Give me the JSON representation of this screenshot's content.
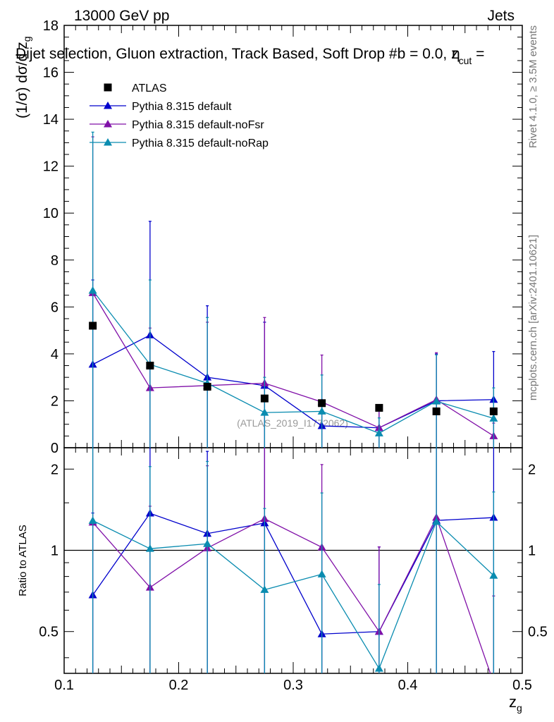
{
  "header": {
    "energy_label": "13000 GeV pp",
    "process_label": "Jets",
    "plot_title": "Dijet selection, Gluon extraction, Track Based, Soft Drop #b = 0.0, z",
    "title_suffix_sub": "cut",
    "title_suffix_tail": " =",
    "title_overlap_glyph": "η"
  },
  "side": {
    "rivet_label": "Rivet 4.1.0, ≥ 3.5M events",
    "mcplots_label": "mcplots.cern.ch [arXiv:2401.10621]"
  },
  "watermark": "(ATLAS_2019_I1772062)",
  "chart_data": {
    "type": "scatter",
    "x": [
      0.125,
      0.175,
      0.225,
      0.275,
      0.325,
      0.375,
      0.425,
      0.475
    ],
    "bin_edges": [
      0.1,
      0.15,
      0.2,
      0.25,
      0.3,
      0.35,
      0.4,
      0.45,
      0.5
    ],
    "top_panel": {
      "ylabel": "(1/σ) dσ/d z",
      "ylabel_sub": "g",
      "ylim": [
        0,
        18
      ],
      "yticks": [
        0,
        2,
        4,
        6,
        8,
        10,
        12,
        14,
        16,
        18
      ],
      "ytick_labels": [
        "0",
        "2",
        "4",
        "6",
        "8",
        "10",
        "12",
        "14",
        "16",
        "18"
      ]
    },
    "ratio_panel": {
      "ylabel": "Ratio to ATLAS",
      "ylim": [
        0.35,
        2.4
      ],
      "yticks": [
        0.5,
        1,
        2
      ],
      "ytick_labels": [
        "0.5",
        "1",
        "2"
      ]
    },
    "xaxis": {
      "label": "z",
      "label_sub": "g",
      "xlim": [
        0.1,
        0.5
      ],
      "xticks": [
        0.1,
        0.2,
        0.3,
        0.4,
        0.5
      ],
      "xtick_labels": [
        "0.1",
        "0.2",
        "0.3",
        "0.4",
        "0.5"
      ]
    },
    "legend_position": "top-left",
    "series": [
      {
        "name": "ATLAS",
        "color": "#000000",
        "marker": "square",
        "values": [
          5.2,
          3.5,
          2.6,
          2.1,
          1.9,
          1.7,
          1.55,
          1.55
        ],
        "err": [
          0,
          0,
          0,
          0,
          0,
          0,
          0,
          0
        ]
      },
      {
        "name": "Pythia 8.315 default",
        "color": "#0000cc",
        "marker": "triangle",
        "values": [
          3.55,
          4.8,
          3.0,
          2.65,
          0.93,
          0.85,
          2.0,
          2.05
        ],
        "err": [
          3.6,
          4.85,
          3.05,
          2.7,
          1.0,
          0.9,
          2.0,
          2.05
        ]
      },
      {
        "name": "Pythia 8.315 default-noFsr",
        "color": "#8010a8",
        "marker": "triangle",
        "values": [
          6.6,
          2.55,
          2.65,
          2.75,
          1.95,
          0.85,
          2.05,
          0.5
        ],
        "err": [
          6.65,
          2.55,
          2.7,
          2.8,
          2.0,
          0.9,
          2.0,
          0.55
        ]
      },
      {
        "name": "Pythia 8.315 default-noRap",
        "color": "#0a8cb0",
        "marker": "triangle",
        "values": [
          6.7,
          3.55,
          2.75,
          1.5,
          1.55,
          0.62,
          1.98,
          1.25
        ],
        "err": [
          6.75,
          3.6,
          2.8,
          1.5,
          1.55,
          0.65,
          1.98,
          1.3
        ]
      }
    ]
  }
}
